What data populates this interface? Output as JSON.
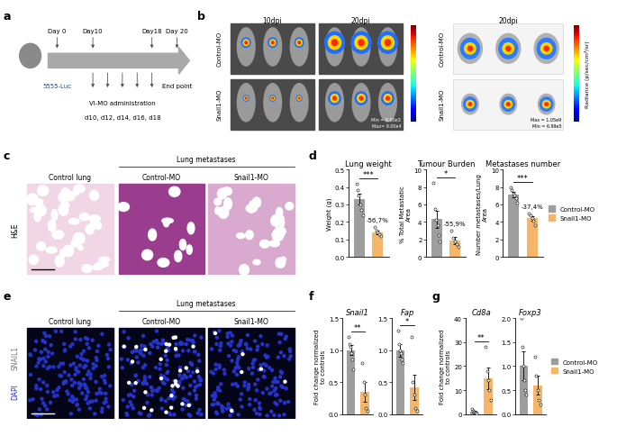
{
  "panel_labels": [
    "a",
    "b",
    "c",
    "d",
    "e",
    "f",
    "g"
  ],
  "timeline": {
    "cells": "5555-Luc",
    "days": [
      "Day 0",
      "Day10",
      "Day18",
      "Day 20"
    ],
    "treatment": "VI-MO administration",
    "schedule": "d10, d12, d14, d16, d18",
    "end": "End point"
  },
  "bioluminescence": {
    "times": [
      "10dpi",
      "20dpi"
    ],
    "groups": [
      "Control-MO",
      "Snail1-MO"
    ],
    "min_label": "Min = 9.60e3",
    "max_label": "Max= 9.00e4",
    "ex_vivo_time": "20dpi",
    "ex_vivo_max": "Max = 1.05e9",
    "ex_vivo_min": "Min = 6.99e5",
    "colorbar_label": "Radiance (p/sec/cm²/sr)"
  },
  "histology": {
    "stain": "H&E",
    "control": "Control lung",
    "metastases": "Lung metastases",
    "groups": [
      "Control-MO",
      "Snail1-MO"
    ]
  },
  "immunofluorescence": {
    "stains": [
      "DAPI",
      "SNAIL1"
    ],
    "control": "Control lung",
    "metastases": "Lung metastases",
    "groups": [
      "Control-MO",
      "Snail1-MO"
    ]
  },
  "chart_data": [
    {
      "type": "bar",
      "title": "Lung weight",
      "y_label": "Weight (g)",
      "categories": [
        "Control-MO",
        "Snail1-MO"
      ],
      "values": [
        0.33,
        0.14
      ],
      "errors": [
        0.03,
        0.01
      ],
      "colors": [
        "#9e9e9e",
        "#f5b66a"
      ],
      "points": [
        [
          0.42,
          0.38,
          0.35,
          0.3,
          0.27,
          0.24
        ],
        [
          0.17,
          0.15,
          0.14,
          0.13,
          0.12
        ]
      ],
      "ylim": [
        0.0,
        0.5
      ],
      "yticks": [
        0.0,
        0.1,
        0.2,
        0.3,
        0.4,
        0.5
      ],
      "significance": "***",
      "annotation": "-56,7%",
      "tick_labels": "y"
    },
    {
      "type": "bar",
      "title": "Tumour Burden",
      "y_label": "% Total Metastatic Area",
      "categories": [
        "Control-MO",
        "Snail1-MO"
      ],
      "values": [
        4.3,
        1.9
      ],
      "errors": [
        1.0,
        0.4
      ],
      "colors": [
        "#9e9e9e",
        "#f5b66a"
      ],
      "points": [
        [
          8.5,
          5.5,
          4.2,
          3.6,
          2.5,
          1.8
        ],
        [
          3.0,
          2.2,
          1.8,
          1.5,
          1.2
        ]
      ],
      "ylim": [
        0,
        10
      ],
      "yticks": [
        0,
        2,
        4,
        6,
        8,
        10
      ],
      "significance": "*",
      "annotation": "-55,9%",
      "tick_labels": "y"
    },
    {
      "type": "bar",
      "title": "Metastases number",
      "y_label": "Number metastases/Lung Area",
      "categories": [
        "Control-MO",
        "Snail1-MO"
      ],
      "values": [
        7.1,
        4.4
      ],
      "errors": [
        0.3,
        0.3
      ],
      "colors": [
        "#9e9e9e",
        "#f5b66a"
      ],
      "points": [
        [
          8.0,
          7.6,
          7.2,
          7.0,
          6.7,
          6.2
        ],
        [
          5.0,
          4.8,
          4.5,
          4.1,
          3.6
        ]
      ],
      "ylim": [
        0,
        10
      ],
      "yticks": [
        0,
        2,
        4,
        6,
        8,
        10
      ],
      "significance": "***",
      "annotation": "-37,4%",
      "tick_labels": "y",
      "legend": "center left"
    },
    {
      "type": "bar",
      "title": "Snail1",
      "y_label": "Fold change normalized to controls",
      "categories": [
        "Control-MO",
        "Snail1-MO"
      ],
      "values": [
        1.0,
        0.35
      ],
      "errors": [
        0.08,
        0.15
      ],
      "colors": [
        "#9e9e9e",
        "#f5b66a"
      ],
      "points": [
        [
          1.2,
          1.1,
          1.05,
          0.95,
          0.85,
          0.7
        ],
        [
          0.8,
          0.5,
          0.3,
          0.1,
          0.05
        ]
      ],
      "ylim": [
        0.0,
        1.5
      ],
      "yticks": [
        0.0,
        0.5,
        1.0,
        1.5
      ],
      "significance": "**",
      "tick_labels": "y"
    },
    {
      "type": "bar",
      "title": "Fap",
      "categories": [
        "Control-MO",
        "Snail1-MO"
      ],
      "values": [
        1.0,
        0.42
      ],
      "errors": [
        0.1,
        0.2
      ],
      "colors": [
        "#9e9e9e",
        "#f5b66a"
      ],
      "points": [
        [
          1.3,
          1.1,
          1.0,
          0.95,
          0.85,
          0.8
        ],
        [
          1.2,
          0.5,
          0.3,
          0.1,
          0.05
        ]
      ],
      "ylim": [
        0.0,
        1.5
      ],
      "yticks": [
        0.0,
        0.5,
        1.0,
        1.5
      ],
      "significance": "*",
      "tick_labels": "y"
    },
    {
      "type": "bar",
      "title": "Cd8a",
      "y_label": "Fold change normalized to controls",
      "categories": [
        "Control-MO",
        "Snail1-MO"
      ],
      "values": [
        1.0,
        15
      ],
      "errors": [
        0.3,
        4.5
      ],
      "colors": [
        "#9e9e9e",
        "#f5b66a"
      ],
      "points": [
        [
          2.0,
          1.5,
          1.0,
          0.7,
          0.5,
          0.3
        ],
        [
          28,
          18,
          14,
          10,
          6
        ]
      ],
      "ylim": [
        0,
        40
      ],
      "yticks": [
        0,
        10,
        20,
        30,
        40
      ],
      "significance": "**",
      "tick_labels": "y"
    },
    {
      "type": "bar",
      "title": "Foxp3",
      "categories": [
        "Control-MO",
        "Snail1-MO"
      ],
      "values": [
        1.0,
        0.6
      ],
      "errors": [
        0.3,
        0.2
      ],
      "colors": [
        "#9e9e9e",
        "#f5b66a"
      ],
      "points": [
        [
          2.0,
          1.4,
          1.0,
          0.7,
          0.5,
          0.4
        ],
        [
          1.2,
          0.8,
          0.5,
          0.3,
          0.2
        ]
      ],
      "ylim": [
        0.0,
        2.0
      ],
      "yticks": [
        0.0,
        0.5,
        1.0,
        1.5,
        2.0
      ],
      "tick_labels": "y",
      "legend": "center left"
    }
  ]
}
